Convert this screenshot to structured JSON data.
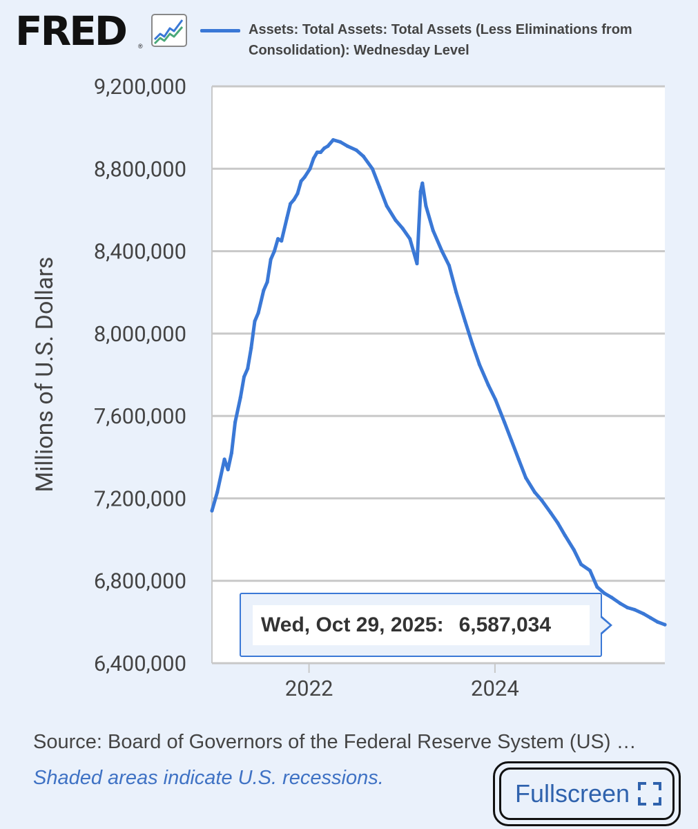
{
  "header": {
    "logo": "FRED",
    "logo_mark": "®",
    "logo_icon": "line-chart-icon",
    "legend_label": "Assets: Total Assets: Total Assets (Less Eliminations from Consolidation): Wednesday Level"
  },
  "tooltip": {
    "date": "Wed, Oct 29, 2025:",
    "value": "6,587,034"
  },
  "footer": {
    "source": "Source: Board of Governors of the Federal Reserve System (US) …",
    "note": "Shaded areas indicate U.S. recessions.",
    "fullscreen_label": "Fullscreen",
    "fullscreen_icon": "expand-icon"
  },
  "colors": {
    "series": "#3a78d6",
    "background": "#eaf1fb",
    "plot_background": "#ffffff",
    "grid": "#c8c8c8"
  },
  "chart_data": {
    "type": "line",
    "title": "",
    "ylabel": "Millions of U.S. Dollars",
    "xlabel": "",
    "ylim": [
      6400000,
      9200000
    ],
    "xlim": [
      "2020-12-16",
      "2025-10-29"
    ],
    "y_ticks": [
      "6,400,000",
      "6,800,000",
      "7,200,000",
      "7,600,000",
      "8,000,000",
      "8,400,000",
      "8,800,000",
      "9,200,000"
    ],
    "x_ticks": [
      "2022",
      "2024"
    ],
    "grid": true,
    "series": [
      {
        "name": "Assets: Total Assets: Total Assets (Less Eliminations from Consolidation): Wednesday Level",
        "x": [
          "2020-12-16",
          "2021-01-06",
          "2021-02-03",
          "2021-02-17",
          "2021-03-03",
          "2021-03-17",
          "2021-04-07",
          "2021-04-21",
          "2021-05-05",
          "2021-05-19",
          "2021-06-02",
          "2021-06-16",
          "2021-07-07",
          "2021-07-21",
          "2021-08-04",
          "2021-08-18",
          "2021-09-01",
          "2021-09-15",
          "2021-10-06",
          "2021-10-20",
          "2021-11-03",
          "2021-11-17",
          "2021-12-01",
          "2021-12-15",
          "2022-01-05",
          "2022-01-19",
          "2022-02-02",
          "2022-02-16",
          "2022-03-02",
          "2022-03-16",
          "2022-04-06",
          "2022-05-04",
          "2022-06-01",
          "2022-07-06",
          "2022-08-03",
          "2022-09-07",
          "2022-10-05",
          "2022-11-02",
          "2022-12-07",
          "2023-01-04",
          "2023-02-01",
          "2023-03-01",
          "2023-03-15",
          "2023-03-22",
          "2023-04-05",
          "2023-05-03",
          "2023-06-07",
          "2023-07-05",
          "2023-08-02",
          "2023-09-06",
          "2023-10-04",
          "2023-11-01",
          "2023-12-06",
          "2024-01-03",
          "2024-02-07",
          "2024-03-06",
          "2024-04-03",
          "2024-05-01",
          "2024-06-05",
          "2024-07-03",
          "2024-08-07",
          "2024-09-04",
          "2024-10-02",
          "2024-11-06",
          "2024-12-04",
          "2025-01-08",
          "2025-02-05",
          "2025-03-05",
          "2025-04-02",
          "2025-05-07",
          "2025-06-04",
          "2025-07-02",
          "2025-08-06",
          "2025-09-03",
          "2025-10-01",
          "2025-10-29"
        ],
        "values": [
          7140000,
          7230000,
          7390000,
          7340000,
          7420000,
          7570000,
          7690000,
          7790000,
          7830000,
          7930000,
          8060000,
          8100000,
          8210000,
          8250000,
          8360000,
          8400000,
          8460000,
          8450000,
          8560000,
          8630000,
          8650000,
          8680000,
          8740000,
          8760000,
          8800000,
          8850000,
          8880000,
          8880000,
          8900000,
          8910000,
          8940000,
          8930000,
          8910000,
          8890000,
          8860000,
          8800000,
          8710000,
          8620000,
          8550000,
          8510000,
          8460000,
          8340000,
          8690000,
          8730000,
          8620000,
          8500000,
          8400000,
          8330000,
          8200000,
          8060000,
          7950000,
          7850000,
          7750000,
          7680000,
          7570000,
          7480000,
          7390000,
          7300000,
          7230000,
          7190000,
          7130000,
          7080000,
          7020000,
          6950000,
          6880000,
          6850000,
          6770000,
          6740000,
          6720000,
          6690000,
          6670000,
          6660000,
          6640000,
          6620000,
          6600000,
          6587034
        ]
      }
    ]
  }
}
